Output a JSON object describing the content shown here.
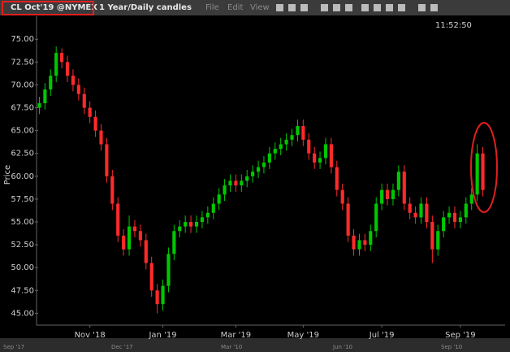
{
  "toolbar": {
    "symbol": "CL Oct'19 @NYMEX",
    "period": "1 Year/Daily candles",
    "menu": [
      "File",
      "Edit",
      "View"
    ],
    "time": "11:52:50"
  },
  "overview": {
    "labels": [
      "Sep '17",
      "Dec '17",
      "Mar '10",
      "Jun '10",
      "Sep '10"
    ]
  },
  "chart_data": {
    "type": "candlestick",
    "y_label": "Price",
    "categories": [
      null,
      null,
      null,
      null,
      null,
      null,
      null,
      null,
      null,
      "Nov '18",
      null,
      null,
      null,
      null,
      null,
      null,
      null,
      null,
      null,
      null,
      null,
      null,
      "Jan '19",
      null,
      null,
      null,
      null,
      null,
      null,
      null,
      null,
      null,
      null,
      null,
      null,
      "Mar '19",
      null,
      null,
      null,
      null,
      null,
      null,
      null,
      null,
      null,
      null,
      null,
      "May '19",
      null,
      null,
      null,
      null,
      null,
      null,
      null,
      null,
      null,
      null,
      null,
      null,
      null,
      "Jul '19",
      null,
      null,
      null,
      null,
      null,
      null,
      null,
      null,
      null,
      null,
      null,
      null,
      null,
      "Sep '19",
      null,
      null,
      null,
      null
    ],
    "open": [
      67.5,
      68,
      69.5,
      71,
      73.5,
      72.5,
      71,
      70,
      69,
      67.5,
      66.5,
      65,
      63.5,
      60,
      57,
      53.5,
      52,
      54.5,
      54,
      53,
      50.5,
      47.5,
      46,
      48,
      51.5,
      54,
      54.5,
      55,
      54.5,
      55,
      55.5,
      56,
      57,
      58,
      59,
      59.5,
      59,
      59.5,
      60,
      60.5,
      61,
      61.5,
      62.5,
      63,
      63.5,
      64,
      64.5,
      65.5,
      64,
      62.5,
      61.5,
      62,
      63.5,
      61,
      58.5,
      57,
      53.5,
      52,
      53,
      52.5,
      54,
      57,
      58.5,
      57.5,
      58.5,
      60.5,
      57,
      56,
      55.5,
      57,
      55,
      52,
      54,
      55.5,
      56,
      55,
      55.5,
      57,
      58,
      62.5
    ],
    "high": [
      68.7,
      70.2,
      71.7,
      74.2,
      74,
      73.2,
      71.7,
      70.7,
      69.7,
      68.2,
      67.2,
      65.7,
      64.2,
      60.7,
      57.7,
      54.2,
      55.7,
      55.2,
      54.7,
      53.7,
      51.2,
      48.2,
      48.7,
      52.2,
      54.7,
      55.2,
      55.7,
      55.7,
      55.7,
      56.2,
      56.7,
      57.7,
      58.7,
      59.7,
      60.2,
      60.2,
      60.2,
      60.7,
      61.2,
      61.7,
      62.2,
      63.2,
      63.7,
      64.2,
      64.7,
      65.2,
      66.2,
      66.2,
      64.7,
      63.2,
      62.7,
      64.2,
      64.2,
      61.7,
      59.2,
      57.7,
      54.2,
      53.7,
      53.7,
      54.7,
      57.7,
      59.2,
      59.2,
      59.2,
      61.2,
      61.2,
      57.7,
      56.7,
      57.7,
      57.7,
      55.7,
      54.7,
      56.2,
      56.7,
      56.7,
      56.2,
      57.7,
      58.7,
      63.5,
      63.2
    ],
    "low": [
      66.8,
      67.3,
      68.8,
      70.3,
      71.8,
      70.3,
      69.3,
      68.3,
      66.8,
      65.8,
      64.3,
      62.8,
      59.3,
      56.3,
      52.8,
      51.3,
      51.3,
      53.3,
      52.3,
      49.8,
      46.8,
      45,
      45.3,
      47.3,
      50.8,
      53.3,
      53.8,
      53.8,
      53.8,
      54.3,
      54.8,
      55.3,
      56.3,
      57.3,
      58.3,
      58.3,
      58.3,
      58.8,
      59.3,
      59.8,
      60.3,
      60.8,
      61.8,
      62.3,
      62.8,
      63.3,
      63.8,
      63.3,
      61.8,
      60.8,
      60.8,
      61.3,
      60.3,
      57.8,
      56.3,
      52.8,
      51.3,
      51.3,
      51.8,
      51.8,
      53.3,
      56.3,
      56.8,
      56.8,
      57.8,
      56.3,
      55.3,
      54.8,
      54.8,
      54.3,
      50.5,
      51.3,
      53.3,
      54.8,
      54.3,
      54.3,
      54.8,
      56.3,
      57.3,
      57.8
    ],
    "close": [
      68,
      69.5,
      71,
      73.5,
      72.5,
      71,
      70,
      69,
      67.5,
      66.5,
      65,
      63.5,
      60,
      57,
      53.5,
      52,
      54.5,
      54,
      53,
      50.5,
      47.5,
      46,
      48,
      51.5,
      54,
      54.5,
      55,
      54.5,
      55,
      55.5,
      56,
      57,
      58,
      59,
      59.5,
      59,
      59.5,
      60,
      60.5,
      61,
      61.5,
      62.5,
      63,
      63.5,
      64,
      64.5,
      65.5,
      64,
      62.5,
      61.5,
      62,
      63.5,
      61,
      58.5,
      57,
      53.5,
      52,
      53,
      52.5,
      54,
      57,
      58.5,
      57.5,
      58.5,
      60.5,
      57,
      56,
      55.5,
      57,
      55,
      52,
      54,
      55.5,
      56,
      55,
      55.5,
      57,
      58,
      62.5,
      58.5
    ],
    "up_color": "#00c800",
    "down_color": "#ff2a2a",
    "ylim": [
      43.7,
      76.8
    ],
    "yticks": [
      {
        "value": 45,
        "label": "45.00"
      },
      {
        "value": 47.5,
        "label": "47.50"
      },
      {
        "value": 50,
        "label": "50.00"
      },
      {
        "value": 52.5,
        "label": "52.50"
      },
      {
        "value": 55,
        "label": "55.00"
      },
      {
        "value": 57.5,
        "label": "57.50"
      },
      {
        "value": 60,
        "label": "60.00"
      },
      {
        "value": 62.5,
        "label": "62.50"
      },
      {
        "value": 65,
        "label": "65.00"
      },
      {
        "value": 67.5,
        "label": "67.50"
      },
      {
        "value": 70,
        "label": "70.00"
      },
      {
        "value": 72.5,
        "label": "72.50"
      },
      {
        "value": 75,
        "label": "75.00"
      }
    ],
    "grid": false
  }
}
